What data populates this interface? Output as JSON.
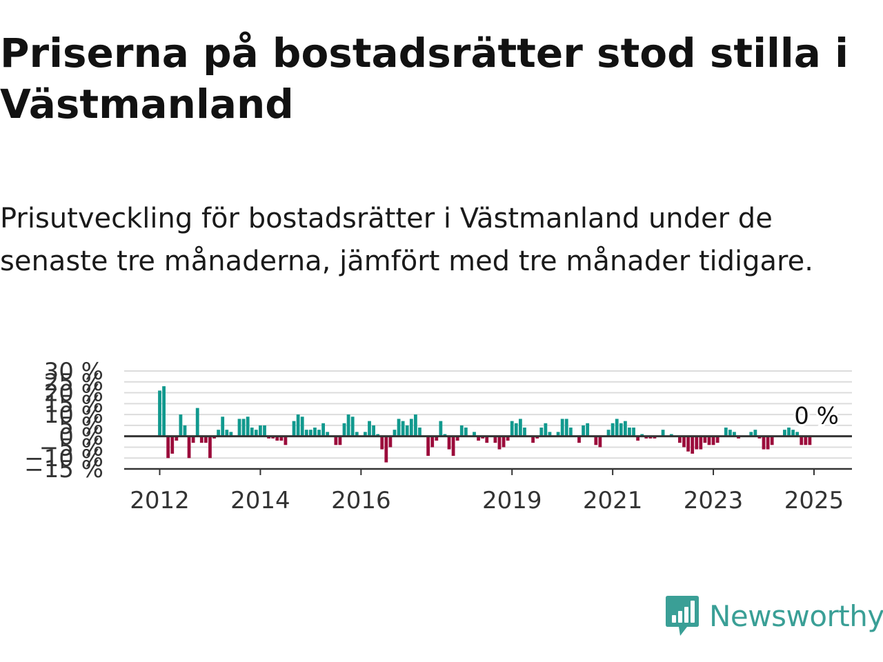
{
  "title": "Priserna på bostadsrätter stod stilla i Västmanland",
  "subtitle": "Prisutveckling för bostadsrätter i Västmanland under de senaste tre månaderna, jämfört med tre månader tidigare.",
  "brand": {
    "name": "Newsworthy",
    "color": "#3a9f96"
  },
  "colors": {
    "positive": "#11998e",
    "negative": "#9b0c3b",
    "zero_line": "#333333",
    "grid": "#dcdcdc"
  },
  "chart_data": {
    "type": "bar",
    "title": "",
    "xlabel": "",
    "ylabel": "",
    "ylim": [
      -15,
      30
    ],
    "y_ticks": [
      30,
      25,
      20,
      15,
      10,
      5,
      0,
      -5,
      -10,
      -15
    ],
    "y_tick_labels": [
      "30 %",
      "25 %",
      "20 %",
      "15 %",
      "10 %",
      "5 %",
      "0 %",
      "−5 %",
      "−10 %",
      "−15 %"
    ],
    "x_tick_labels": [
      "2012",
      "2014",
      "2016",
      "2019",
      "2021",
      "2023",
      "2025"
    ],
    "x_tick_index": [
      0,
      24,
      48,
      84,
      108,
      132,
      156
    ],
    "last_value_label": "0 %",
    "grid": true,
    "x_start": "2012-01",
    "values": [
      21,
      23,
      -10,
      -8,
      -2,
      10,
      5,
      -10,
      -3,
      13,
      -3,
      -3,
      -10,
      -1,
      3,
      9,
      3,
      2,
      0,
      8,
      8,
      9,
      4,
      3,
      5,
      5,
      -1,
      -1,
      -2,
      -2,
      -4,
      0,
      7,
      10,
      9,
      3,
      3,
      4,
      3,
      6,
      2,
      0,
      -4,
      -4,
      6,
      10,
      9,
      2,
      0,
      2,
      7,
      5,
      1,
      -6,
      -12,
      -5,
      3,
      8,
      7,
      5,
      8,
      10,
      4,
      0,
      -9,
      -5,
      -2,
      7,
      1,
      -6,
      -9,
      -2,
      5,
      4,
      0,
      2,
      -2,
      -1,
      -3,
      0,
      -3,
      -6,
      -5,
      -2,
      7,
      6,
      8,
      4,
      0,
      -3,
      -1,
      4,
      6,
      2,
      0,
      2,
      8,
      8,
      4,
      0,
      -3,
      5,
      6,
      0,
      -4,
      -5,
      0,
      3,
      6,
      8,
      6,
      7,
      4,
      4,
      -2,
      1,
      -1,
      -1,
      -1,
      0,
      3,
      0,
      1,
      0,
      -3,
      -5,
      -7,
      -8,
      -6,
      -6,
      -3,
      -4,
      -4,
      -3,
      0,
      4,
      3,
      2,
      -1,
      0,
      0,
      2,
      3,
      -1,
      -6,
      -6,
      -4,
      0,
      0,
      3,
      4,
      3,
      2,
      -4,
      -4,
      -4,
      0
    ]
  }
}
